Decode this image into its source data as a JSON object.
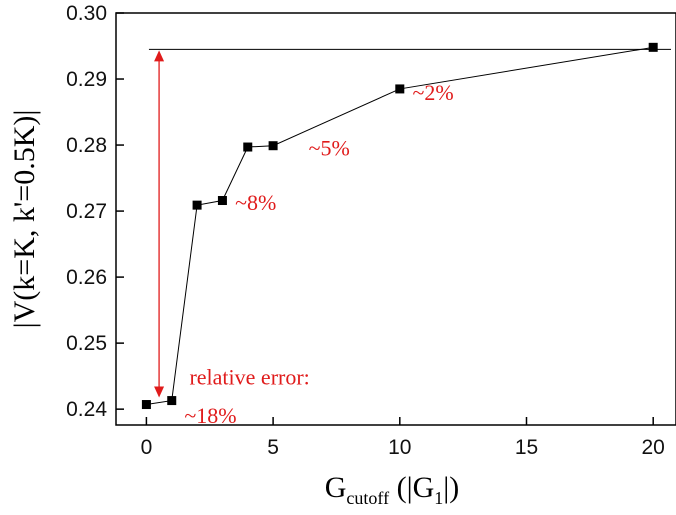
{
  "chart_data": {
    "type": "scatter",
    "title": "",
    "xlabel": {
      "main": "G",
      "sub": "cutoff",
      "rest1": " (|G",
      "sub2": "1",
      "rest2": "|)"
    },
    "ylabel": "|V(k=K, k'=0.5K)|",
    "xlim": [
      -1.2,
      20.9
    ],
    "ylim": [
      0.2376,
      0.3
    ],
    "xticks": [
      0,
      5,
      10,
      15,
      20
    ],
    "yticks": [
      0.24,
      0.25,
      0.26,
      0.27,
      0.28,
      0.29,
      0.3
    ],
    "xtick_labels": [
      "0",
      "5",
      "10",
      "15",
      "20"
    ],
    "ytick_labels": [
      "0.24",
      "0.25",
      "0.26",
      "0.27",
      "0.28",
      "0.29",
      "0.30"
    ],
    "series": [
      {
        "x": [
          0,
          1,
          2,
          3,
          4,
          5,
          10,
          20
        ],
        "y": [
          0.2407,
          0.2413,
          0.2709,
          0.2716,
          0.2797,
          0.2799,
          0.2885,
          0.2948
        ],
        "marker": "square",
        "line": true
      }
    ],
    "reference_line": {
      "y": 0.2945
    },
    "error_arrow": {
      "x": 0.5,
      "y_from": 0.2945,
      "y_to": 0.2407,
      "color": "#e01b1b"
    },
    "annotations": [
      {
        "text": "relative error:",
        "x": 1.7,
        "y": 0.2437
      },
      {
        "text": "~18%",
        "x": 1.5,
        "y": 0.2379
      },
      {
        "text": "~8%",
        "x": 3.5,
        "y": 0.2702
      },
      {
        "text": "~5%",
        "x": 6.4,
        "y": 0.2784
      },
      {
        "text": "~2%",
        "x": 10.5,
        "y": 0.2868
      }
    ],
    "grid": false,
    "colors": {
      "annotation": "#e01b1b",
      "series": "#000000"
    }
  }
}
